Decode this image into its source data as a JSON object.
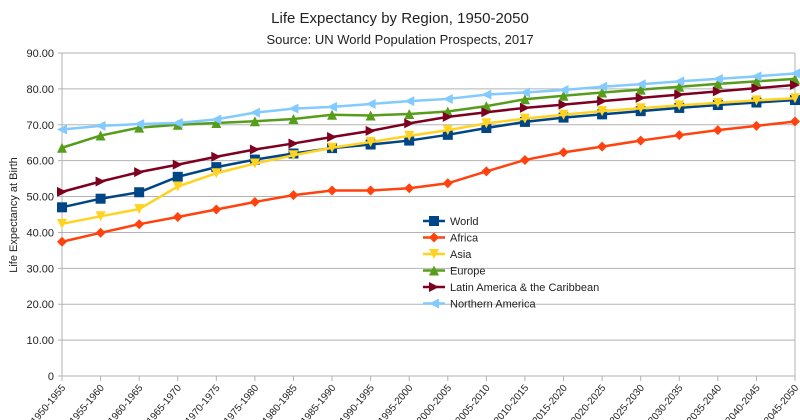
{
  "chart_data": {
    "type": "line",
    "title": "Life Expectancy by Region, 1950-2050",
    "subtitle": "Source: UN World Population Prospects, 2017",
    "xlabel": "",
    "ylabel": "Life Expectancy at Birth",
    "ylim": [
      0,
      90
    ],
    "yticks": [
      "0",
      "10.00",
      "20.00",
      "30.00",
      "40.00",
      "50.00",
      "60.00",
      "70.00",
      "80.00",
      "90.00"
    ],
    "grid": true,
    "legend_position": "center",
    "categories": [
      "1950-1955",
      "1955-1960",
      "1960-1965",
      "1965-1970",
      "1970-1975",
      "1975-1980",
      "1980-1985",
      "1985-1990",
      "1990-1995",
      "1995-2000",
      "2000-2005",
      "2005-2010",
      "2010-2015",
      "2015-2020",
      "2020-2025",
      "2025-2030",
      "2030-2035",
      "2035-2040",
      "2040-2045",
      "2045-2050"
    ],
    "series": [
      {
        "name": "World",
        "color": "#004586",
        "marker": "square",
        "values": [
          47.0,
          49.4,
          51.2,
          55.5,
          58.2,
          60.3,
          62.0,
          63.5,
          64.5,
          65.6,
          67.2,
          69.1,
          70.8,
          72.0,
          72.9,
          73.8,
          74.7,
          75.5,
          76.2,
          76.9
        ]
      },
      {
        "name": "Africa",
        "color": "#ff420e",
        "marker": "diamond",
        "values": [
          37.4,
          39.9,
          42.3,
          44.3,
          46.4,
          48.5,
          50.4,
          51.7,
          51.7,
          52.3,
          53.7,
          57.0,
          60.2,
          62.3,
          63.9,
          65.6,
          67.1,
          68.5,
          69.7,
          70.9
        ]
      },
      {
        "name": "Asia",
        "color": "#ffd320",
        "marker": "triangle-down",
        "values": [
          42.4,
          44.5,
          46.5,
          52.8,
          56.5,
          59.2,
          61.5,
          63.6,
          65.2,
          66.9,
          68.5,
          70.4,
          71.7,
          72.8,
          73.8,
          74.6,
          75.4,
          76.1,
          76.8,
          77.4
        ]
      },
      {
        "name": "Europe",
        "color": "#579d1c",
        "marker": "triangle-up",
        "values": [
          63.6,
          67.0,
          69.2,
          70.0,
          70.5,
          71.0,
          71.6,
          72.8,
          72.6,
          73.0,
          73.7,
          75.2,
          77.1,
          78.1,
          79.0,
          79.8,
          80.6,
          81.4,
          82.1,
          82.8
        ]
      },
      {
        "name": "Latin America & the Caribbean",
        "color": "#7e0021",
        "marker": "triangle-right",
        "values": [
          51.3,
          54.2,
          56.8,
          58.9,
          61.1,
          63.1,
          64.8,
          66.6,
          68.3,
          70.4,
          72.2,
          73.5,
          74.7,
          75.6,
          76.6,
          77.5,
          78.4,
          79.3,
          80.2,
          81.1
        ]
      },
      {
        "name": "Northern America",
        "color": "#83caff",
        "marker": "triangle-left",
        "values": [
          68.7,
          69.7,
          70.2,
          70.5,
          71.5,
          73.4,
          74.5,
          75.0,
          75.8,
          76.6,
          77.2,
          78.4,
          79.0,
          79.7,
          80.6,
          81.3,
          82.1,
          82.8,
          83.5,
          84.3
        ]
      }
    ]
  }
}
